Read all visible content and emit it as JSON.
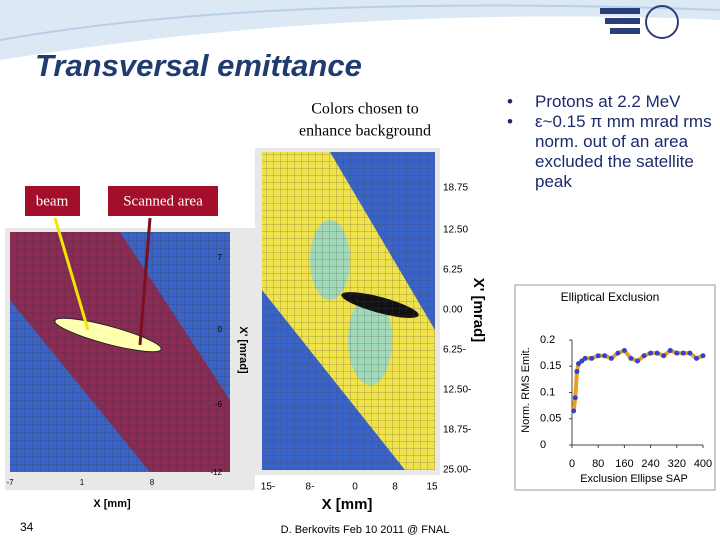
{
  "header": {
    "title": "Transversal emittance"
  },
  "caption": {
    "lines": [
      "Colors chosen to",
      "enhance background"
    ]
  },
  "labels": {
    "beam": "beam",
    "scanned_area": "Scanned area"
  },
  "left_image": {
    "y_ticks": [
      "7",
      "0",
      "-6",
      "-12"
    ],
    "x_ticks": [
      "-7",
      "1",
      "8"
    ],
    "y_label": "X' [mrad]",
    "x_label": "X [mm]"
  },
  "middle_image": {
    "y_ticks": [
      "18.75",
      "12.50",
      "6.25",
      "0.00",
      "6.25-",
      "12.50-",
      "18.75-",
      "25.00-"
    ],
    "x_ticks": [
      "15-",
      "8-",
      "0",
      "8",
      "15"
    ],
    "y_label": "X' [mrad]",
    "x_label": "X [mm]"
  },
  "bullets": [
    "Protons at 2.2 MeV",
    "ε~0.15 π mm mrad rms norm. out of an area excluded the satellite peak"
  ],
  "plot": {
    "title": "Elliptical Exclusion",
    "x_label": "Exclusion Ellipse SAP",
    "y_label": "Norm. RMS Emit.",
    "x": [
      5,
      10,
      15,
      20,
      30,
      40,
      60,
      80,
      100,
      120,
      140,
      160,
      180,
      200,
      220,
      240,
      260,
      280,
      300,
      320,
      340,
      360,
      380,
      400
    ],
    "values": [
      0.065,
      0.09,
      0.14,
      0.155,
      0.16,
      0.165,
      0.165,
      0.17,
      0.17,
      0.165,
      0.175,
      0.18,
      0.165,
      0.16,
      0.17,
      0.175,
      0.175,
      0.17,
      0.18,
      0.175,
      0.175,
      0.175,
      0.165,
      0.17
    ],
    "xlim": [
      0,
      400
    ],
    "ylim": [
      0,
      0.2
    ],
    "xticks": [
      0,
      80,
      160,
      240,
      320,
      400
    ],
    "yticks": [
      0,
      0.05,
      0.1,
      0.15,
      0.2
    ],
    "color": "#3344cc"
  },
  "footer": {
    "text": "D. Berkovits Feb 10 2011 @ FNAL",
    "page": "34"
  }
}
